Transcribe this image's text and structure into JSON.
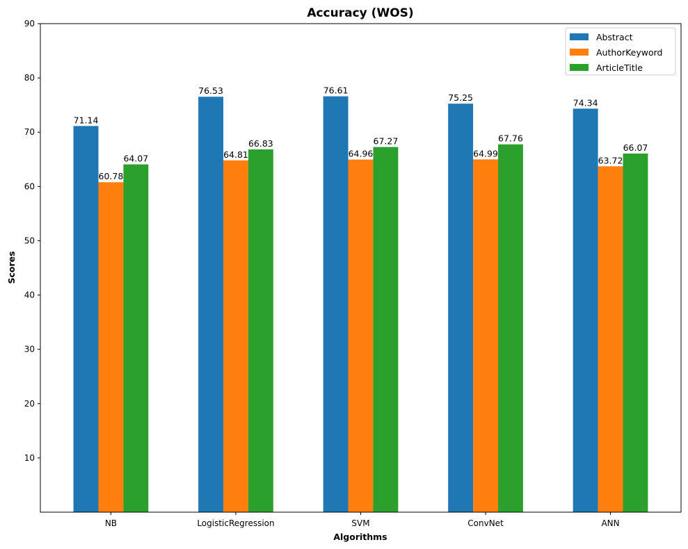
{
  "chart_data": {
    "type": "bar",
    "title": "Accuracy (WOS)",
    "xlabel": "Algorithms",
    "ylabel": "Scores",
    "categories": [
      "NB",
      "LogisticRegression",
      "SVM",
      "ConvNet",
      "ANN"
    ],
    "series": [
      {
        "name": "Abstract",
        "color": "#1f77b4",
        "values": [
          71.14,
          76.53,
          76.61,
          75.25,
          74.34
        ]
      },
      {
        "name": "AuthorKeyword",
        "color": "#ff7f0e",
        "values": [
          60.78,
          64.81,
          64.96,
          64.99,
          63.72
        ]
      },
      {
        "name": "ArticleTitle",
        "color": "#2ca02c",
        "values": [
          64.07,
          66.83,
          67.27,
          67.76,
          66.07
        ]
      }
    ],
    "ylim": [
      0,
      90
    ],
    "yticks": [
      10,
      20,
      30,
      40,
      50,
      60,
      70,
      80,
      90
    ],
    "value_labels": true,
    "grid": false,
    "legend_position": "top-right"
  }
}
